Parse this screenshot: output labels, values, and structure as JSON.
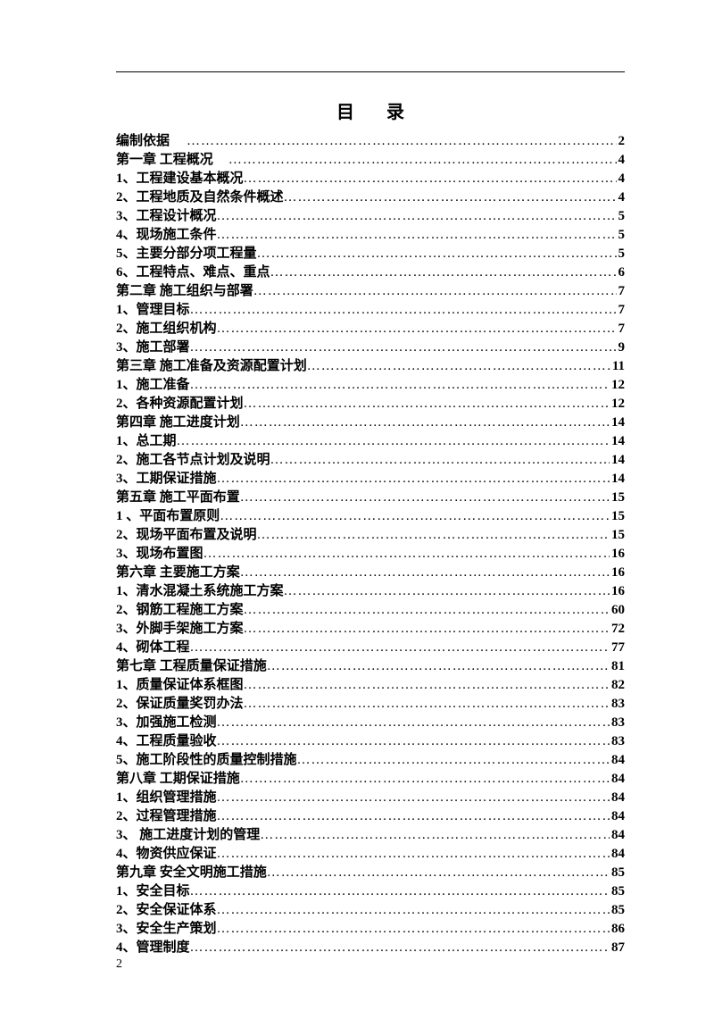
{
  "title": "目录",
  "page_number": "2",
  "text_color": "#000000",
  "background_color": "#ffffff",
  "font_family": "SimSun",
  "base_fontsize": 15,
  "title_fontsize": 20,
  "line_height": 21,
  "entries": [
    {
      "label": "编制依据",
      "page": "2",
      "pregap": true
    },
    {
      "label": "第一章  工程概况",
      "page": "4",
      "pregap": true
    },
    {
      "label": "1、工程建设基本概况",
      "page": "4"
    },
    {
      "label": "2、工程地质及自然条件概述",
      "page": "4",
      "page_spaced": true
    },
    {
      "label": "3、工程设计概况",
      "page": "5"
    },
    {
      "label": "4、现场施工条件",
      "page": "5"
    },
    {
      "label": "5、主要分部分项工程量",
      "page": "5"
    },
    {
      "label": "6、工程特点、难点、重点",
      "page": "6"
    },
    {
      "label": "第二章   施工组织与部署",
      "page": "7"
    },
    {
      "label": "1、管理目标",
      "page": "7"
    },
    {
      "label": "2、施工组织机构",
      "page": "7"
    },
    {
      "label": "3、施工部署",
      "page": "9"
    },
    {
      "label": "第三章   施工准备及资源配置计划",
      "page": "11"
    },
    {
      "label": "1、施工准备",
      "page": "12"
    },
    {
      "label": "2、各种资源配置计划",
      "page": "12"
    },
    {
      "label": "第四章   施工进度计划",
      "page": "14"
    },
    {
      "label": "1、总工期",
      "page": "14"
    },
    {
      "label": "2、施工各节点计划及说明",
      "page": "14"
    },
    {
      "label": "3、工期保证措施",
      "page": "14"
    },
    {
      "label": "第五章    施工平面布置",
      "page": "15"
    },
    {
      "label": "1 、平面布置原则",
      "page": "15"
    },
    {
      "label": "2、现场平面布置及说明",
      "page": "15"
    },
    {
      "label": "3、现场布置图",
      "page": "16"
    },
    {
      "label": "第六章    主要施工方案",
      "page": "16"
    },
    {
      "label": "1、清水混凝土系统施工方案",
      "page": "16"
    },
    {
      "label": "2、钢筋工程施工方案",
      "page": "60"
    },
    {
      "label": "3、外脚手架施工方案",
      "page": "72"
    },
    {
      "label": "4、砌体工程",
      "page": "77"
    },
    {
      "label": "第七章   工程质量保证措施",
      "page": "81"
    },
    {
      "label": "1、质量保证体系框图",
      "page": "82"
    },
    {
      "label": "2、保证质量奖罚办法",
      "page": "83"
    },
    {
      "label": "3、加强施工检测",
      "page": "83"
    },
    {
      "label": "4、工程质量验收",
      "page": "83"
    },
    {
      "label": "5、施工阶段性的质量控制措施",
      "page": "84"
    },
    {
      "label": "第八章   工期保证措施",
      "page": "84"
    },
    {
      "label": "1、组织管理措施",
      "page": "84"
    },
    {
      "label": "2、过程管理措施",
      "page": "84"
    },
    {
      "label": "3、 施工进度计划的管理",
      "page": "84"
    },
    {
      "label": "4、物资供应保证",
      "page": "84"
    },
    {
      "label": "第九章   安全文明施工措施",
      "page": "85"
    },
    {
      "label": "1、安全目标",
      "page": "85"
    },
    {
      "label": "2、安全保证体系",
      "page": "85"
    },
    {
      "label": "3、安全生产策划",
      "page": "86"
    },
    {
      "label": "4、管理制度",
      "page": "87"
    }
  ]
}
